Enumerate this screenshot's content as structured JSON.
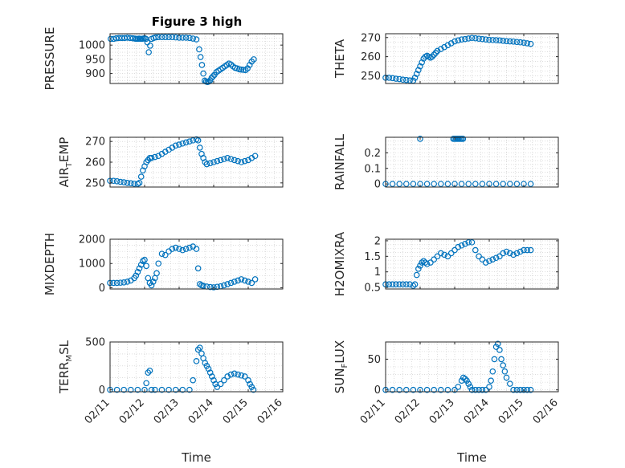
{
  "title": "Figure 3 high",
  "chart_data": [
    {
      "type": "scatter",
      "ylabel": "PRESSURE",
      "xlabel": "",
      "xlim": [
        "02/11",
        "02/16"
      ],
      "ylim": [
        865,
        1040
      ],
      "yticks": [
        900,
        950,
        1000
      ],
      "ytick_labels": [
        "900",
        "950",
        "1000"
      ],
      "x_days": [
        11.02,
        11.1,
        11.18,
        11.26,
        11.34,
        11.42,
        11.5,
        11.58,
        11.66,
        11.72,
        11.76,
        11.8,
        11.84,
        11.88,
        11.92,
        11.96,
        12.0,
        12.04,
        12.08,
        12.12,
        12.16,
        12.2,
        12.26,
        12.32,
        12.4,
        12.5,
        12.6,
        12.7,
        12.8,
        12.9,
        13.0,
        13.1,
        13.2,
        13.3,
        13.4,
        13.5,
        13.58,
        13.62,
        13.66,
        13.7,
        13.74,
        13.78,
        13.82,
        13.86,
        13.9,
        13.94,
        13.98,
        14.02,
        14.08,
        14.14,
        14.2,
        14.26,
        14.32,
        14.38,
        14.44,
        14.5,
        14.56,
        14.62,
        14.68,
        14.74,
        14.8,
        14.86,
        14.92,
        14.98,
        15.04,
        15.1,
        15.16
      ],
      "y": [
        1022,
        1022,
        1024,
        1025,
        1025,
        1025,
        1026,
        1025,
        1024,
        1023,
        1022,
        1022,
        1023,
        1022,
        1022,
        1023,
        1024,
        1022,
        1010,
        975,
        998,
        1022,
        1025,
        1027,
        1028,
        1028,
        1028,
        1028,
        1028,
        1027,
        1026,
        1026,
        1026,
        1025,
        1023,
        1020,
        985,
        958,
        930,
        900,
        875,
        872,
        870,
        872,
        876,
        885,
        890,
        895,
        905,
        910,
        915,
        920,
        925,
        930,
        935,
        932,
        925,
        920,
        918,
        915,
        914,
        913,
        912,
        918,
        930,
        942,
        950
      ]
    },
    {
      "type": "scatter",
      "ylabel": "THETA",
      "xlabel": "",
      "xlim": [
        "02/11",
        "02/16"
      ],
      "ylim": [
        246,
        272
      ],
      "yticks": [
        250,
        260,
        270
      ],
      "ytick_labels": [
        "250",
        "260",
        "270"
      ],
      "x_days": [
        11.0,
        11.1,
        11.2,
        11.3,
        11.4,
        11.5,
        11.6,
        11.7,
        11.8,
        11.85,
        11.9,
        11.95,
        12.0,
        12.05,
        12.1,
        12.15,
        12.2,
        12.25,
        12.3,
        12.35,
        12.4,
        12.45,
        12.5,
        12.6,
        12.7,
        12.8,
        12.9,
        13.0,
        13.1,
        13.2,
        13.3,
        13.4,
        13.5,
        13.6,
        13.7,
        13.8,
        13.9,
        14.0,
        14.1,
        14.2,
        14.3,
        14.4,
        14.5,
        14.6,
        14.7,
        14.8,
        14.9,
        15.0,
        15.1,
        15.2
      ],
      "y": [
        249,
        249,
        248.8,
        248.5,
        248.3,
        248,
        247.8,
        247.6,
        247.5,
        249,
        251,
        253,
        255,
        257,
        259,
        260,
        260.5,
        260,
        259.5,
        260,
        261,
        262,
        263,
        264,
        265,
        266,
        267,
        268,
        268.5,
        269,
        269.2,
        269.5,
        269.8,
        269.6,
        269.4,
        269.2,
        269,
        268.8,
        268.7,
        268.6,
        268.5,
        268.3,
        268.1,
        268,
        267.9,
        267.7,
        267.5,
        267.3,
        267,
        266.7
      ]
    },
    {
      "type": "scatter",
      "ylabel": "AIR_TEMP",
      "xlabel": "",
      "xlim": [
        "02/11",
        "02/16"
      ],
      "ylim": [
        248,
        272
      ],
      "yticks": [
        250,
        260,
        270
      ],
      "ytick_labels": [
        "250",
        "260",
        "270"
      ],
      "x_days": [
        11.0,
        11.1,
        11.2,
        11.3,
        11.4,
        11.5,
        11.6,
        11.7,
        11.8,
        11.85,
        11.9,
        11.95,
        12.0,
        12.05,
        12.1,
        12.15,
        12.2,
        12.3,
        12.4,
        12.5,
        12.6,
        12.7,
        12.8,
        12.9,
        13.0,
        13.1,
        13.2,
        13.3,
        13.4,
        13.5,
        13.55,
        13.6,
        13.65,
        13.7,
        13.75,
        13.8,
        13.9,
        14.0,
        14.1,
        14.2,
        14.3,
        14.4,
        14.5,
        14.6,
        14.7,
        14.8,
        14.9,
        15.0,
        15.1,
        15.2
      ],
      "y": [
        251,
        251,
        250.8,
        250.5,
        250.3,
        250,
        249.8,
        249.6,
        249.5,
        250,
        253,
        256,
        258,
        260,
        261,
        262,
        262,
        262.5,
        263,
        264,
        265,
        266,
        267,
        268,
        268.5,
        269,
        269.5,
        270,
        270.5,
        271,
        270.5,
        267,
        264,
        262,
        260,
        259,
        259.5,
        260,
        260.5,
        261,
        261.5,
        262,
        261.5,
        261,
        260.5,
        260,
        260.5,
        261,
        262,
        263
      ]
    },
    {
      "type": "scatter",
      "ylabel": "RAINFALL",
      "xlabel": "",
      "xlim": [
        "02/11",
        "02/16"
      ],
      "ylim": [
        -0.02,
        0.3
      ],
      "yticks": [
        0,
        0.1,
        0.2
      ],
      "ytick_labels": [
        "0",
        "0.1",
        "0.2"
      ],
      "x_days": [
        11.0,
        11.2,
        11.4,
        11.6,
        11.8,
        12.0,
        12.2,
        12.4,
        12.6,
        12.8,
        13.0,
        13.2,
        13.4,
        13.6,
        13.8,
        14.0,
        14.2,
        14.4,
        14.6,
        14.8,
        15.0,
        15.2,
        12.0,
        12.96,
        13.0,
        13.04,
        13.08,
        13.12,
        13.16,
        13.2,
        13.24
      ],
      "y": [
        0,
        0,
        0,
        0,
        0,
        0,
        0,
        0,
        0,
        0,
        0,
        0,
        0,
        0,
        0,
        0,
        0,
        0,
        0,
        0,
        0,
        0,
        0.29,
        0.29,
        0.29,
        0.29,
        0.29,
        0.29,
        0.29,
        0.29,
        0.29
      ]
    },
    {
      "type": "scatter",
      "ylabel": "MIXDEPTH",
      "xlabel": "",
      "xlim": [
        "02/11",
        "02/16"
      ],
      "ylim": [
        -50,
        2000
      ],
      "yticks": [
        0,
        1000,
        2000
      ],
      "ytick_labels": [
        "0",
        "1000",
        "2000"
      ],
      "x_days": [
        11.0,
        11.1,
        11.2,
        11.3,
        11.4,
        11.5,
        11.6,
        11.7,
        11.75,
        11.8,
        11.85,
        11.9,
        11.95,
        12.0,
        12.05,
        12.1,
        12.15,
        12.2,
        12.25,
        12.3,
        12.35,
        12.4,
        12.5,
        12.6,
        12.7,
        12.8,
        12.9,
        13.0,
        13.1,
        13.2,
        13.3,
        13.4,
        13.5,
        13.55,
        13.6,
        13.65,
        13.7,
        13.8,
        13.9,
        14.0,
        14.1,
        14.2,
        14.3,
        14.4,
        14.5,
        14.6,
        14.7,
        14.8,
        14.9,
        15.0,
        15.1,
        15.2
      ],
      "y": [
        200,
        200,
        200,
        210,
        220,
        250,
        300,
        400,
        500,
        650,
        800,
        950,
        1100,
        1150,
        900,
        400,
        200,
        100,
        250,
        400,
        600,
        1000,
        1400,
        1350,
        1500,
        1600,
        1650,
        1600,
        1550,
        1600,
        1650,
        1700,
        1600,
        800,
        150,
        100,
        80,
        50,
        30,
        20,
        40,
        60,
        100,
        150,
        200,
        250,
        300,
        350,
        300,
        250,
        200,
        350
      ]
    },
    {
      "type": "scatter",
      "ylabel": "H2OMIXRA",
      "xlabel": "",
      "xlim": [
        "02/11",
        "02/16"
      ],
      "ylim": [
        0.45,
        2.05
      ],
      "yticks": [
        0.5,
        1,
        1.5,
        2
      ],
      "ytick_labels": [
        "0.5",
        "1",
        "1.5",
        "2"
      ],
      "x_days": [
        11.0,
        11.1,
        11.2,
        11.3,
        11.4,
        11.5,
        11.6,
        11.7,
        11.8,
        11.85,
        11.9,
        11.95,
        12.0,
        12.05,
        12.1,
        12.15,
        12.2,
        12.3,
        12.4,
        12.5,
        12.6,
        12.7,
        12.8,
        12.9,
        13.0,
        13.1,
        13.2,
        13.3,
        13.4,
        13.5,
        13.6,
        13.7,
        13.8,
        13.9,
        14.0,
        14.1,
        14.2,
        14.3,
        14.4,
        14.5,
        14.6,
        14.7,
        14.8,
        14.9,
        15.0,
        15.1,
        15.2
      ],
      "y": [
        0.6,
        0.6,
        0.6,
        0.6,
        0.6,
        0.6,
        0.6,
        0.6,
        0.55,
        0.6,
        0.9,
        1.1,
        1.2,
        1.3,
        1.35,
        1.3,
        1.25,
        1.3,
        1.4,
        1.5,
        1.6,
        1.55,
        1.5,
        1.6,
        1.7,
        1.8,
        1.85,
        1.9,
        1.95,
        1.95,
        1.7,
        1.5,
        1.4,
        1.3,
        1.35,
        1.4,
        1.45,
        1.5,
        1.6,
        1.65,
        1.6,
        1.55,
        1.6,
        1.65,
        1.7,
        1.7,
        1.7
      ]
    },
    {
      "type": "scatter",
      "ylabel": "TERR_MSL",
      "xlabel": "Time",
      "xlim": [
        "02/11",
        "02/16"
      ],
      "ylim": [
        -20,
        500
      ],
      "yticks": [
        0,
        500
      ],
      "ytick_labels": [
        "0",
        "500"
      ],
      "xtick_labels": [
        "02/11",
        "02/12",
        "02/13",
        "02/14",
        "02/15",
        "02/16"
      ],
      "x_days": [
        11.0,
        11.2,
        11.4,
        11.6,
        11.8,
        12.0,
        12.05,
        12.1,
        12.15,
        12.2,
        12.3,
        12.5,
        12.7,
        12.9,
        13.1,
        13.3,
        13.4,
        13.5,
        13.55,
        13.6,
        13.65,
        13.7,
        13.75,
        13.8,
        13.85,
        13.9,
        13.95,
        14.0,
        14.05,
        14.1,
        14.2,
        14.3,
        14.4,
        14.5,
        14.6,
        14.7,
        14.8,
        14.9,
        15.0,
        15.05,
        15.1,
        15.15
      ],
      "y": [
        0,
        0,
        0,
        0,
        0,
        0,
        70,
        180,
        200,
        0,
        0,
        0,
        0,
        0,
        0,
        0,
        100,
        300,
        420,
        440,
        380,
        330,
        280,
        250,
        220,
        180,
        140,
        100,
        60,
        30,
        60,
        100,
        140,
        160,
        170,
        160,
        150,
        140,
        100,
        60,
        30,
        0
      ]
    },
    {
      "type": "scatter",
      "ylabel": "SUN_FLUX",
      "xlabel": "Time",
      "xlim": [
        "02/11",
        "02/16"
      ],
      "ylim": [
        -3,
        78
      ],
      "yticks": [
        0,
        50
      ],
      "ytick_labels": [
        "0",
        "50"
      ],
      "xtick_labels": [
        "02/11",
        "02/12",
        "02/13",
        "02/14",
        "02/15",
        "02/16"
      ],
      "x_days": [
        11.0,
        11.2,
        11.4,
        11.6,
        11.8,
        12.0,
        12.2,
        12.4,
        12.6,
        12.8,
        13.0,
        13.1,
        13.2,
        13.25,
        13.3,
        13.35,
        13.4,
        13.45,
        13.5,
        13.6,
        13.7,
        13.8,
        13.9,
        14.0,
        14.05,
        14.1,
        14.15,
        14.2,
        14.25,
        14.3,
        14.35,
        14.4,
        14.45,
        14.5,
        14.6,
        14.7,
        14.8,
        14.9,
        15.0,
        15.1,
        15.2
      ],
      "y": [
        0,
        0,
        0,
        0,
        0,
        0,
        0,
        0,
        0,
        0,
        0,
        5,
        15,
        20,
        18,
        15,
        10,
        5,
        0,
        0,
        0,
        0,
        0,
        5,
        15,
        30,
        50,
        70,
        75,
        65,
        50,
        40,
        30,
        20,
        10,
        0,
        0,
        0,
        0,
        0,
        0
      ]
    }
  ]
}
